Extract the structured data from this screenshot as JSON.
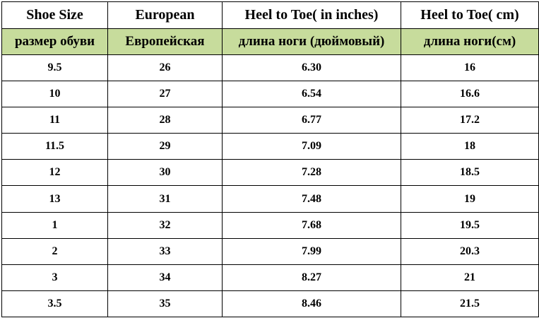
{
  "table": {
    "headers_en": [
      "Shoe Size",
      "European",
      "Heel to Toe( in inches)",
      "Heel to Toe( cm)"
    ],
    "headers_ru": [
      "размер обуви",
      "Европейская",
      "длина ноги (дюймовый)",
      "длина ноги(см)"
    ],
    "rows": [
      [
        "9.5",
        "26",
        "6.30",
        "16"
      ],
      [
        "10",
        "27",
        "6.54",
        "16.6"
      ],
      [
        "11",
        "28",
        "6.77",
        "17.2"
      ],
      [
        "11.5",
        "29",
        "7.09",
        "18"
      ],
      [
        "12",
        "30",
        "7.28",
        "18.5"
      ],
      [
        "13",
        "31",
        "7.48",
        "19"
      ],
      [
        "1",
        "32",
        "7.68",
        "19.5"
      ],
      [
        "2",
        "33",
        "7.99",
        "20.3"
      ],
      [
        "3",
        "34",
        "8.27",
        "21"
      ],
      [
        "3.5",
        "35",
        "8.46",
        "21.5"
      ]
    ]
  },
  "colors": {
    "subheader_background": "#c7dc9c",
    "border": "#000000"
  }
}
